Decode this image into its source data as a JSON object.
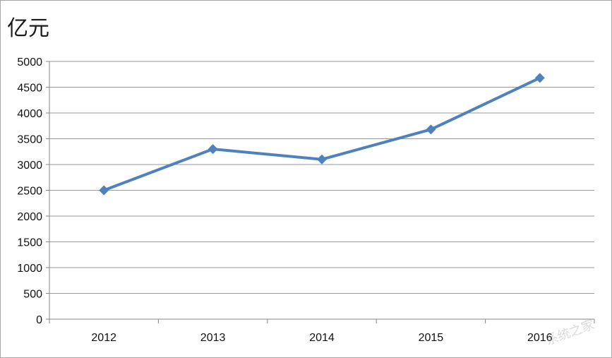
{
  "chart_data": {
    "type": "line",
    "ylabel": "亿元",
    "categories": [
      "2012",
      "2013",
      "2014",
      "2015",
      "2016"
    ],
    "series": [
      {
        "values": [
          2500,
          3300,
          3100,
          3680,
          4680
        ]
      }
    ],
    "ylim": [
      0,
      5000
    ],
    "yticks": [
      0,
      500,
      1000,
      1500,
      2000,
      2500,
      3000,
      3500,
      4000,
      4500,
      5000
    ],
    "grid": true,
    "legend": "none",
    "colors": {
      "line": "#4f81bd",
      "grid": "#9a9a9a",
      "axis": "#868686"
    }
  },
  "watermark": "系统之家"
}
